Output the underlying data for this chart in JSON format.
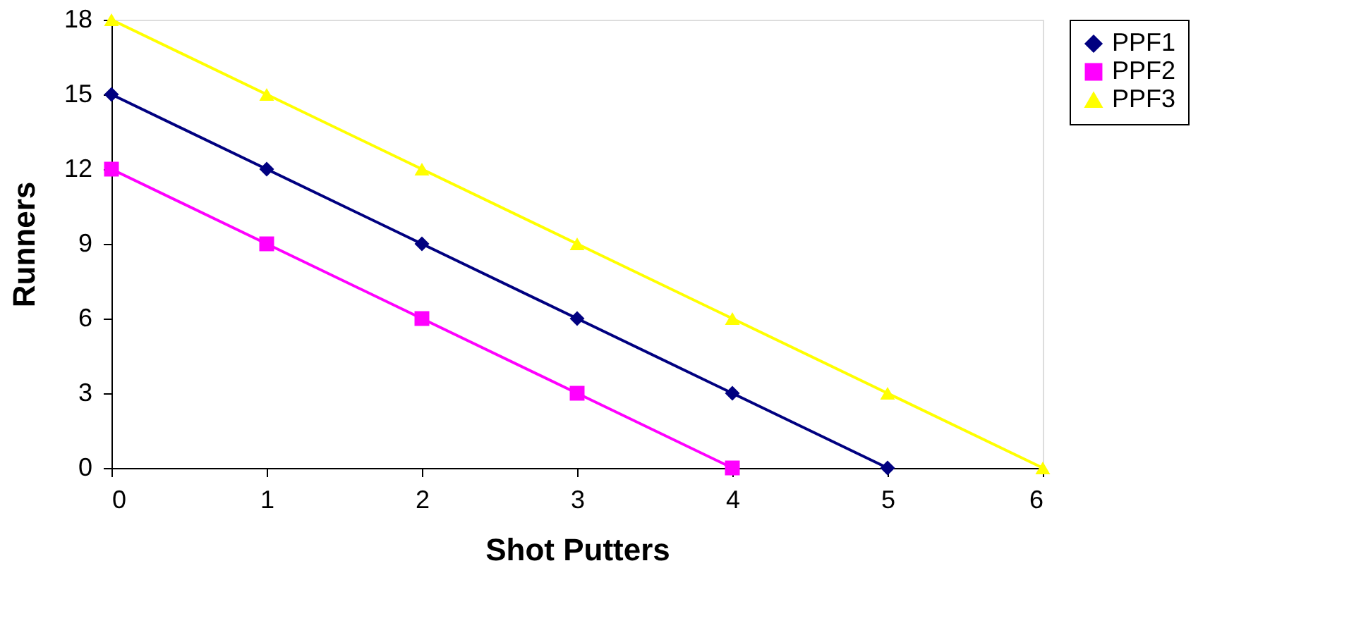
{
  "chart_data": {
    "type": "line",
    "xlabel": "Shot Putters",
    "ylabel": "Runners",
    "x": [
      0,
      1,
      2,
      3,
      4,
      5,
      6
    ],
    "series": [
      {
        "name": "PPF1",
        "color": "#000080",
        "marker": "diamond",
        "values": [
          15,
          12,
          9,
          6,
          3,
          0,
          null
        ]
      },
      {
        "name": "PPF2",
        "color": "#ff00ff",
        "marker": "square",
        "values": [
          12,
          9,
          6,
          3,
          0,
          null,
          null
        ]
      },
      {
        "name": "PPF3",
        "color": "#ffff00",
        "marker": "triangle",
        "values": [
          18,
          15,
          12,
          9,
          6,
          3,
          0
        ]
      }
    ],
    "xlim": [
      0,
      6
    ],
    "xticks": [
      0,
      1,
      2,
      3,
      4,
      5,
      6
    ],
    "ylim": [
      0,
      18
    ],
    "yticks": [
      0,
      3,
      6,
      9,
      12,
      15,
      18
    ],
    "grid": false,
    "legend": "right",
    "line_style": "solid"
  }
}
